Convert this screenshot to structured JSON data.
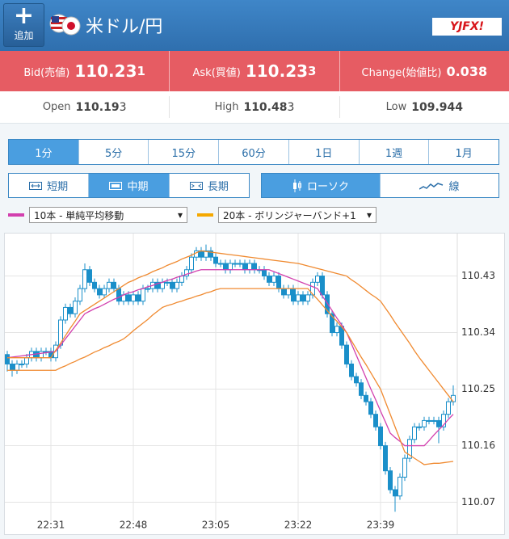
{
  "header": {
    "add_button": "追加",
    "title": "米ドル/円",
    "logo": "YJFX!"
  },
  "bid": {
    "label": "Bid(売値)",
    "main": "110.23",
    "pip": "1"
  },
  "ask": {
    "label": "Ask(買値)",
    "main": "110.23",
    "pip": "3"
  },
  "change": {
    "label": "Change(始値比)",
    "value": "0.038"
  },
  "open": {
    "label": "Open",
    "main": "110.19",
    "pip": "3"
  },
  "high": {
    "label": "High",
    "main": "110.48",
    "pip": "3"
  },
  "low": {
    "label": "Low",
    "value": "109.944"
  },
  "tabs": {
    "items": [
      "1分",
      "5分",
      "15分",
      "60分",
      "1日",
      "1週",
      "1月"
    ],
    "selected": 0
  },
  "ranges": {
    "items": [
      "短期",
      "中期",
      "長期"
    ],
    "selected": 1
  },
  "styles": {
    "items": [
      "ローソク",
      "線"
    ],
    "selected": 0
  },
  "indicators": [
    {
      "label": "10本 - 単純平均移動",
      "color": "#d23fae"
    },
    {
      "label": "20本 - ボリンジャーバンド+1",
      "color": "#f5a800"
    }
  ],
  "chart_data": {
    "type": "candlestick",
    "up_color": "#ffffff",
    "down_color": "#1a8fc9",
    "edge_color": "#1a8fc9",
    "categories": [
      null,
      null,
      null,
      null,
      null,
      null,
      null,
      null,
      null,
      "22:31",
      null,
      null,
      null,
      null,
      null,
      null,
      null,
      null,
      null,
      null,
      null,
      null,
      null,
      null,
      null,
      null,
      "22:48",
      null,
      null,
      null,
      null,
      null,
      null,
      null,
      null,
      null,
      null,
      null,
      null,
      null,
      null,
      null,
      null,
      "23:05",
      null,
      null,
      null,
      null,
      null,
      null,
      null,
      null,
      null,
      null,
      null,
      null,
      null,
      null,
      null,
      null,
      "23:22",
      null,
      null,
      null,
      null,
      null,
      null,
      null,
      null,
      null,
      null,
      null,
      null,
      null,
      null,
      null,
      null,
      "23:39",
      null,
      null,
      null,
      null,
      null,
      null,
      null,
      null,
      null,
      null,
      null,
      null,
      null,
      null,
      null
    ],
    "candles": [
      [
        110.305,
        110.311,
        110.278,
        110.29
      ],
      [
        110.29,
        110.296,
        110.27,
        110.28
      ],
      [
        110.28,
        110.296,
        110.274,
        110.29
      ],
      [
        110.29,
        110.296,
        110.284,
        110.29
      ],
      [
        110.29,
        110.306,
        110.284,
        110.3
      ],
      [
        110.3,
        110.316,
        110.294,
        110.31
      ],
      [
        110.31,
        110.316,
        110.294,
        110.3
      ],
      [
        110.3,
        110.316,
        110.294,
        110.31
      ],
      [
        110.31,
        110.316,
        110.304,
        110.31
      ],
      [
        110.31,
        110.316,
        110.294,
        110.3
      ],
      [
        110.3,
        110.326,
        110.294,
        110.32
      ],
      [
        110.32,
        110.366,
        110.314,
        110.36
      ],
      [
        110.36,
        110.386,
        110.354,
        110.38
      ],
      [
        110.38,
        110.386,
        110.364,
        110.37
      ],
      [
        110.37,
        110.396,
        110.364,
        110.39
      ],
      [
        110.39,
        110.416,
        110.384,
        110.41
      ],
      [
        110.41,
        110.45,
        110.404,
        110.44
      ],
      [
        110.44,
        110.446,
        110.414,
        110.42
      ],
      [
        110.42,
        110.426,
        110.404,
        110.41
      ],
      [
        110.41,
        110.416,
        110.394,
        110.4
      ],
      [
        110.4,
        110.416,
        110.394,
        110.41
      ],
      [
        110.41,
        110.426,
        110.404,
        110.42
      ],
      [
        110.42,
        110.426,
        110.404,
        110.41
      ],
      [
        110.41,
        110.416,
        110.384,
        110.39
      ],
      [
        110.39,
        110.406,
        110.384,
        110.4
      ],
      [
        110.4,
        110.406,
        110.384,
        110.39
      ],
      [
        110.39,
        110.406,
        110.384,
        110.4
      ],
      [
        110.4,
        110.406,
        110.384,
        110.39
      ],
      [
        110.39,
        110.416,
        110.384,
        110.41
      ],
      [
        110.41,
        110.416,
        110.404,
        110.41
      ],
      [
        110.41,
        110.426,
        110.404,
        110.42
      ],
      [
        110.42,
        110.426,
        110.404,
        110.41
      ],
      [
        110.41,
        110.426,
        110.404,
        110.42
      ],
      [
        110.42,
        110.426,
        110.414,
        110.42
      ],
      [
        110.42,
        110.426,
        110.404,
        110.41
      ],
      [
        110.41,
        110.426,
        110.404,
        110.42
      ],
      [
        110.42,
        110.436,
        110.414,
        110.43
      ],
      [
        110.43,
        110.446,
        110.424,
        110.44
      ],
      [
        110.44,
        110.466,
        110.434,
        110.46
      ],
      [
        110.46,
        110.476,
        110.454,
        110.47
      ],
      [
        110.47,
        110.476,
        110.454,
        110.46
      ],
      [
        110.46,
        110.48,
        110.454,
        110.47
      ],
      [
        110.47,
        110.476,
        110.454,
        110.46
      ],
      [
        110.46,
        110.466,
        110.444,
        110.45
      ],
      [
        110.45,
        110.456,
        110.444,
        110.45
      ],
      [
        110.45,
        110.456,
        110.434,
        110.44
      ],
      [
        110.44,
        110.456,
        110.434,
        110.45
      ],
      [
        110.45,
        110.456,
        110.444,
        110.45
      ],
      [
        110.45,
        110.456,
        110.444,
        110.45
      ],
      [
        110.45,
        110.456,
        110.434,
        110.44
      ],
      [
        110.44,
        110.456,
        110.434,
        110.45
      ],
      [
        110.45,
        110.456,
        110.434,
        110.44
      ],
      [
        110.44,
        110.446,
        110.434,
        110.44
      ],
      [
        110.44,
        110.446,
        110.424,
        110.43
      ],
      [
        110.43,
        110.436,
        110.414,
        110.42
      ],
      [
        110.42,
        110.436,
        110.414,
        110.43
      ],
      [
        110.43,
        110.436,
        110.404,
        110.41
      ],
      [
        110.41,
        110.416,
        110.394,
        110.4
      ],
      [
        110.4,
        110.416,
        110.394,
        110.41
      ],
      [
        110.41,
        110.416,
        110.384,
        110.39
      ],
      [
        110.39,
        110.406,
        110.384,
        110.4
      ],
      [
        110.4,
        110.406,
        110.384,
        110.39
      ],
      [
        110.39,
        110.406,
        110.384,
        110.4
      ],
      [
        110.4,
        110.426,
        110.394,
        110.42
      ],
      [
        110.42,
        110.436,
        110.414,
        110.43
      ],
      [
        110.43,
        110.436,
        110.394,
        110.4
      ],
      [
        110.4,
        110.406,
        110.364,
        110.37
      ],
      [
        110.37,
        110.376,
        110.334,
        110.34
      ],
      [
        110.34,
        110.356,
        110.334,
        110.35
      ],
      [
        110.35,
        110.356,
        110.314,
        110.32
      ],
      [
        110.32,
        110.326,
        110.284,
        110.29
      ],
      [
        110.29,
        110.296,
        110.264,
        110.27
      ],
      [
        110.27,
        110.276,
        110.254,
        110.26
      ],
      [
        110.26,
        110.266,
        110.234,
        110.24
      ],
      [
        110.24,
        110.246,
        110.224,
        110.23
      ],
      [
        110.23,
        110.236,
        110.204,
        110.21
      ],
      [
        110.21,
        110.216,
        110.184,
        110.19
      ],
      [
        110.19,
        110.196,
        110.154,
        110.16
      ],
      [
        110.16,
        110.166,
        110.114,
        110.12
      ],
      [
        110.12,
        110.126,
        110.084,
        110.09
      ],
      [
        110.09,
        110.096,
        110.055,
        110.08
      ],
      [
        110.08,
        110.116,
        110.074,
        110.11
      ],
      [
        110.11,
        110.146,
        110.104,
        110.14
      ],
      [
        110.14,
        110.176,
        110.134,
        110.17
      ],
      [
        110.17,
        110.196,
        110.164,
        110.19
      ],
      [
        110.19,
        110.196,
        110.184,
        110.19
      ],
      [
        110.19,
        110.206,
        110.184,
        110.2
      ],
      [
        110.2,
        110.206,
        110.194,
        110.2
      ],
      [
        110.2,
        110.206,
        110.194,
        110.2
      ],
      [
        110.2,
        110.206,
        110.164,
        110.19
      ],
      [
        110.19,
        110.216,
        110.184,
        110.21
      ],
      [
        110.21,
        110.236,
        110.204,
        110.23
      ],
      [
        110.23,
        110.256,
        110.224,
        110.24
      ]
    ],
    "series": [
      {
        "color": "#d23fae",
        "values": [
          110.3,
          110.301,
          110.302,
          110.303,
          110.304,
          110.305,
          110.306,
          110.307,
          110.308,
          110.309,
          110.31,
          110.32,
          110.33,
          110.34,
          110.35,
          110.36,
          110.37,
          110.374,
          110.378,
          110.381,
          110.385,
          110.389,
          110.393,
          110.396,
          110.4,
          110.403,
          110.405,
          110.408,
          110.41,
          110.413,
          110.415,
          110.418,
          110.42,
          110.423,
          110.425,
          110.428,
          110.43,
          110.433,
          110.435,
          110.438,
          110.44,
          110.44,
          110.44,
          110.44,
          110.44,
          110.44,
          110.44,
          110.44,
          110.44,
          110.44,
          110.44,
          110.44,
          110.44,
          110.44,
          110.44,
          110.437,
          110.434,
          110.431,
          110.428,
          110.425,
          110.422,
          110.419,
          110.416,
          110.413,
          110.41,
          110.398,
          110.387,
          110.375,
          110.363,
          110.352,
          110.34,
          110.322,
          110.304,
          110.286,
          110.268,
          110.25,
          110.233,
          110.215,
          110.198,
          110.18,
          110.173,
          110.167,
          110.16,
          110.16,
          110.16,
          110.16,
          110.16,
          110.168,
          110.177,
          110.185,
          110.193,
          110.202,
          110.21
        ]
      },
      {
        "color": "#f08a30",
        "values": [
          110.3,
          110.3,
          110.3,
          110.3,
          110.3,
          110.3,
          110.3,
          110.3,
          110.3,
          110.3,
          110.312,
          110.323,
          110.335,
          110.347,
          110.358,
          110.37,
          110.375,
          110.38,
          110.385,
          110.39,
          110.395,
          110.4,
          110.405,
          110.41,
          110.415,
          110.42,
          110.423,
          110.427,
          110.43,
          110.433,
          110.437,
          110.44,
          110.443,
          110.447,
          110.45,
          110.453,
          110.457,
          110.46,
          110.463,
          110.467,
          110.47,
          110.469,
          110.468,
          110.467,
          110.466,
          110.465,
          110.464,
          110.463,
          110.462,
          110.461,
          110.46,
          110.459,
          110.458,
          110.457,
          110.456,
          110.455,
          110.454,
          110.453,
          110.452,
          110.451,
          110.45,
          110.448,
          110.446,
          110.444,
          110.442,
          110.44,
          110.438,
          110.436,
          110.434,
          110.432,
          110.43,
          110.424,
          110.419,
          110.413,
          110.407,
          110.401,
          110.396,
          110.39,
          110.379,
          110.368,
          110.356,
          110.345,
          110.334,
          110.323,
          110.311,
          110.3,
          110.29,
          110.28,
          110.27,
          110.26,
          110.25,
          110.24,
          110.23
        ]
      },
      {
        "color": "#f08a30",
        "values": [
          110.28,
          110.28,
          110.28,
          110.28,
          110.28,
          110.28,
          110.28,
          110.28,
          110.28,
          110.28,
          110.28,
          110.284,
          110.287,
          110.291,
          110.294,
          110.298,
          110.301,
          110.305,
          110.309,
          110.312,
          110.316,
          110.319,
          110.323,
          110.326,
          110.33,
          110.336,
          110.343,
          110.349,
          110.355,
          110.361,
          110.368,
          110.374,
          110.38,
          110.383,
          110.385,
          110.388,
          110.39,
          110.393,
          110.395,
          110.398,
          110.4,
          110.403,
          110.405,
          110.408,
          110.41,
          110.41,
          110.41,
          110.41,
          110.41,
          110.41,
          110.41,
          110.41,
          110.41,
          110.41,
          110.41,
          110.41,
          110.41,
          110.41,
          110.41,
          110.41,
          110.41,
          110.41,
          110.41,
          110.401,
          110.393,
          110.384,
          110.375,
          110.366,
          110.358,
          110.349,
          110.34,
          110.327,
          110.314,
          110.301,
          110.289,
          110.276,
          110.263,
          110.25,
          110.23,
          110.21,
          110.19,
          110.17,
          110.15,
          110.145,
          110.14,
          110.135,
          110.13,
          110.131,
          110.132,
          110.132,
          110.133,
          110.134,
          110.135
        ]
      }
    ],
    "ylim": [
      110.045,
      110.495
    ],
    "yticks": [
      110.07,
      110.16,
      110.25,
      110.34,
      110.43
    ],
    "grid": true
  }
}
